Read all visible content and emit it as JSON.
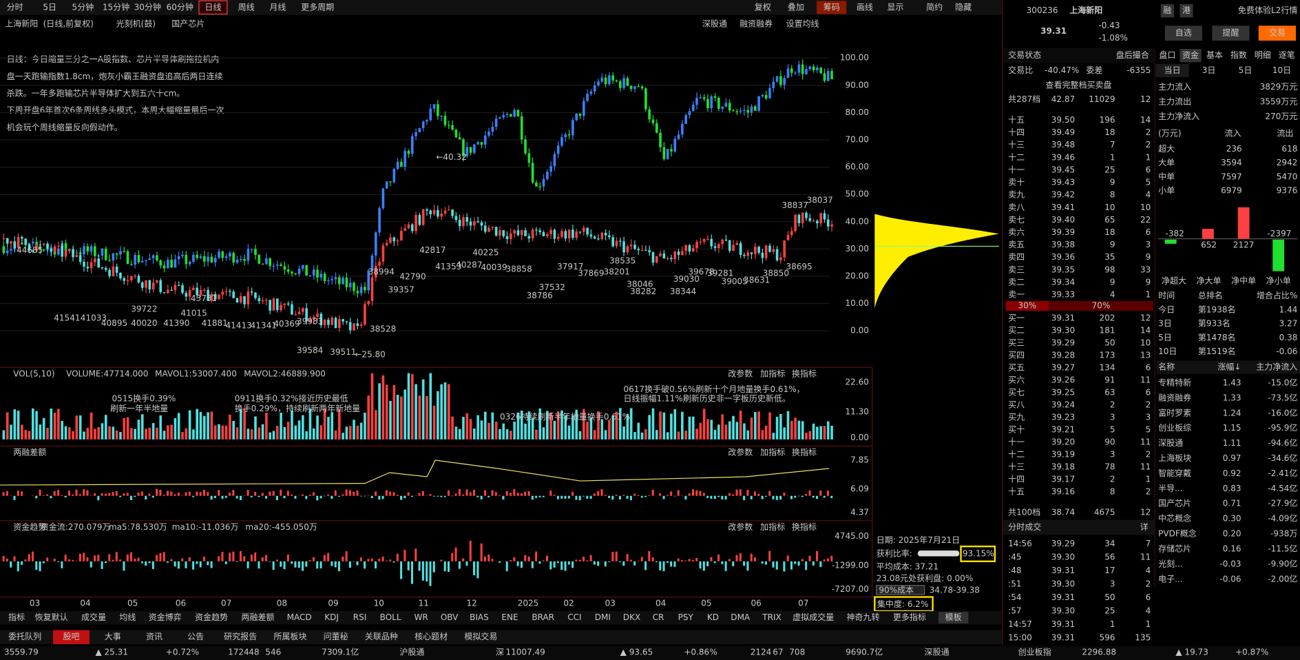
{
  "toolbar": {
    "periods": [
      "分时",
      "5日",
      "5分钟",
      "15分钟",
      "30分钟",
      "60分钟",
      "日线",
      "周线",
      "月线",
      "更多周期"
    ],
    "tools": [
      "复权",
      "叠加",
      "筹码",
      "画线",
      "显示",
      "简约",
      "隐藏"
    ]
  },
  "header": {
    "name": "上海新阳",
    "mode": "(日线,前复权)",
    "tag1": "光刻机(鼓)",
    "tag2": "国产芯片",
    "links": [
      "深股通",
      "融资融券",
      "设置均线"
    ]
  },
  "note": [
    "日线：今日缩量三分之一A股指数、芯片半导体刷拖拉机内",
    "盘一天跑输指数1.8cm，炮灰小霸王融资盘追高后两日连续",
    "杀跌。一年多跑输芯片半导体扩大到五六十cm。",
    "下周开盘6年首次6条周线多头模式，本周大幅缩量最后一次",
    "机会玩个周线缩量反向假动作。"
  ],
  "price_axis": [
    "100.00",
    "90.00",
    "80.00",
    "70.00",
    "60.00",
    "50.00",
    "40.00",
    "30.00",
    "20.00",
    "10.00",
    "0.00"
  ],
  "chart_labels": [
    "44685",
    "41541",
    "41033",
    "40895",
    "40020",
    "39722",
    "41390",
    "41015",
    "43731",
    "41881",
    "41413",
    "41341",
    "40369",
    "39983",
    "39584",
    "39511",
    "38528",
    "←25.80",
    "38994",
    "39357",
    "42790",
    "42817",
    "←40.32",
    "41353",
    "40287",
    "40039",
    "40225",
    "38858",
    "38786",
    "37532",
    "37917",
    "37869",
    "38201",
    "38535",
    "38046",
    "38282",
    "38344",
    "39030",
    "39678",
    "39281",
    "39005",
    "38631",
    "38850",
    "38695",
    "38837",
    "38037"
  ],
  "vol_panel": {
    "title": "VOL(5,10)",
    "volume": "VOLUME:47714.000",
    "mavol1": "MAVOL1:53007.400",
    "mavol2": "MAVOL2:46889.900",
    "buttons": [
      "改参数",
      "加指标",
      "换指标"
    ],
    "axis": [
      "22.60",
      "11.30",
      "0.00"
    ],
    "notes": [
      "0515换手0.39%",
      "刷新一年半地量",
      "0911换手0.32%接近历史最低",
      "换手0.29%，持续刷新两年新地量",
      "0326持续刷新半年地量换手0.61%",
      "0617换手破0.56%刷新十个月地量换手0.61%，",
      "日线振幅1.11%刷新历史非一字板历史新低。"
    ]
  },
  "margin_panel": {
    "title": "两融差额",
    "buttons": [
      "改参数",
      "加指标",
      "换指标"
    ],
    "axis": [
      "7.85",
      "6.09",
      "4.37"
    ]
  },
  "fund_panel": {
    "title": "资金趋势",
    "flow": "资金流:270.079万",
    "ma5": "ma5:78.530万",
    "ma10": "ma10:-11.036万",
    "ma20": "ma20:-455.050万",
    "buttons": [
      "改参数",
      "加指标",
      "换指标"
    ],
    "axis": [
      "4745.00",
      "-1299.00",
      "-7207.00"
    ]
  },
  "x_axis": [
    "03",
    "04",
    "05",
    "06",
    "07",
    "08",
    "09",
    "10",
    "11",
    "12",
    "2025",
    "02",
    "03",
    "04",
    "05",
    "06",
    "07"
  ],
  "cost_info": {
    "date": "日期: 2025年7月21日",
    "profit_label": "获利比率:",
    "profit": "93.15%",
    "avg": "平均成本: 37.21",
    "profit_at": "23.08元处获利盘: 0.00%",
    "cost_label": "90%成本",
    "cost_range": "34.78-39.38",
    "concentration": "集中度: 6.2%"
  },
  "indicator_tabs": [
    "指标",
    "恢复默认",
    "成交量",
    "均线",
    "资金博弈",
    "资金趋势",
    "两融差额",
    "MACD",
    "KDJ",
    "RSI",
    "BOLL",
    "WR",
    "OBV",
    "BIAS",
    "ENE",
    "BRAR",
    "CCI",
    "DMI",
    "DKX",
    "CR",
    "PSY",
    "KD",
    "DMA",
    "TRIX",
    "虚拟成交量",
    "神奇九转",
    "更多指标",
    "模板"
  ],
  "info_tabs": [
    "委托队列",
    "股吧",
    "大事",
    "资讯",
    "公告",
    "研究报告",
    "所属板块",
    "问董秘",
    "关联品种",
    "核心题材",
    "模拟交易"
  ],
  "status_bar": [
    "3559.79",
    "▲ 25.31",
    "+0.72%",
    "1724",
    "48",
    "546",
    "7309.1亿",
    "沪股通",
    "深",
    "11007.49",
    "▲ 93.65",
    "+0.86%",
    "2124",
    "67",
    "708",
    "9690.7亿",
    "深股通",
    "创业板指",
    "2296.88",
    "▲ 19.73",
    "+0.87%"
  ],
  "quote": {
    "code": "300236",
    "name": "上海新阳",
    "tags": [
      "融",
      "港"
    ],
    "l2": "免费体验L2行情",
    "price": "39.31",
    "change": "-0.43",
    "pct": "-1.08%",
    "buttons": [
      "自选",
      "提醒",
      "交易"
    ]
  },
  "order_book": {
    "status_label": "交易状态",
    "status": "盘后撮合",
    "ratio_label": "交易比",
    "ratio": "-40.47%",
    "diff_label": "委差",
    "diff": "-6355",
    "full": "查看完整档买卖盘",
    "sell_total": [
      "共287档",
      "42.87",
      "11029",
      "12"
    ],
    "sell": [
      [
        "十五",
        "39.50",
        "196",
        "14"
      ],
      [
        "十四",
        "39.49",
        "18",
        "2"
      ],
      [
        "十三",
        "39.48",
        "7",
        "2"
      ],
      [
        "十二",
        "39.46",
        "1",
        "1"
      ],
      [
        "十一",
        "39.45",
        "25",
        "6"
      ],
      [
        "卖十",
        "39.43",
        "9",
        "5"
      ],
      [
        "卖九",
        "39.42",
        "8",
        "4"
      ],
      [
        "卖八",
        "39.41",
        "10",
        "10"
      ],
      [
        "卖七",
        "39.40",
        "65",
        "22"
      ],
      [
        "卖六",
        "39.39",
        "18",
        "6"
      ],
      [
        "卖五",
        "39.38",
        "9",
        "3"
      ],
      [
        "卖四",
        "39.36",
        "35",
        "9"
      ],
      [
        "卖三",
        "39.35",
        "98",
        "33"
      ],
      [
        "卖二",
        "39.34",
        "9",
        "9"
      ],
      [
        "卖一",
        "39.33",
        "4",
        "1"
      ]
    ],
    "split": [
      "30%",
      "70%"
    ],
    "buy": [
      [
        "买一",
        "39.31",
        "202",
        "12"
      ],
      [
        "买二",
        "39.30",
        "181",
        "14"
      ],
      [
        "买三",
        "39.29",
        "50",
        "10"
      ],
      [
        "买四",
        "39.28",
        "173",
        "13"
      ],
      [
        "买五",
        "39.27",
        "134",
        "6"
      ],
      [
        "买六",
        "39.26",
        "91",
        "11"
      ],
      [
        "买七",
        "39.25",
        "63",
        "6"
      ],
      [
        "买八",
        "39.24",
        "2",
        "2"
      ],
      [
        "买九",
        "39.23",
        "3",
        "3"
      ],
      [
        "买十",
        "39.21",
        "5",
        "5"
      ],
      [
        "十一",
        "39.20",
        "90",
        "11"
      ],
      [
        "十二",
        "39.19",
        "3",
        "2"
      ],
      [
        "十三",
        "39.18",
        "78",
        "11"
      ],
      [
        "十四",
        "39.17",
        "2",
        "1"
      ],
      [
        "十五",
        "39.16",
        "8",
        "2"
      ]
    ],
    "buy_total": [
      "共100档",
      "38.74",
      "4675",
      "12"
    ]
  },
  "ticks": {
    "title": "分时成交",
    "more": "详",
    "rows": [
      [
        "14:56",
        "39.29",
        "34",
        "7"
      ],
      [
        ":45",
        "39.30",
        "56",
        "11"
      ],
      [
        ":48",
        "39.31",
        "17",
        "4"
      ],
      [
        ":51",
        "39.30",
        "3",
        "2"
      ],
      [
        ":54",
        "39.31",
        "50",
        "6"
      ],
      [
        ":57",
        "39.30",
        "25",
        "4"
      ],
      [
        "14:57",
        "39.31",
        "1",
        "1"
      ],
      [
        "15:00",
        "39.31",
        "596",
        "135"
      ]
    ]
  },
  "funds": {
    "tabs": [
      "盘口",
      "资金",
      "基本",
      "指数",
      "明细",
      "逐笔"
    ],
    "periods": [
      "当日",
      "3日",
      "5日",
      "10日"
    ],
    "main": [
      [
        "主力流入",
        "3829万元"
      ],
      [
        "主力流出",
        "3559万元"
      ],
      [
        "主力净流入",
        "270万元"
      ]
    ],
    "head": [
      "(万元)",
      "流入",
      "流出"
    ],
    "rows": [
      [
        "超大",
        "236",
        "618"
      ],
      [
        "大单",
        "3594",
        "2942"
      ],
      [
        "中单",
        "7597",
        "5470"
      ],
      [
        "小单",
        "6979",
        "9376"
      ]
    ],
    "net": [
      "-382",
      "652",
      "2127",
      "-2397"
    ],
    "net_names": [
      "净超大",
      "净大单",
      "净中单",
      "净小单"
    ],
    "rank_head": [
      "时间",
      "总排名",
      "增合占比%"
    ],
    "ranks": [
      [
        "今日",
        "第1938名",
        "1.44"
      ],
      [
        "3日",
        "第933名",
        "3.27"
      ],
      [
        "5日",
        "第1478名",
        "0.38"
      ],
      [
        "10日",
        "第1519名",
        "-0.06"
      ]
    ],
    "board_head": [
      "名称",
      "涨幅↓",
      "主力净流入"
    ],
    "boards": [
      [
        "专精特新",
        "1.43",
        "-15.0亿"
      ],
      [
        "融资融券",
        "1.33",
        "-73.5亿"
      ],
      [
        "富时罗素",
        "1.24",
        "-16.0亿"
      ],
      [
        "创业板综",
        "1.15",
        "-95.9亿"
      ],
      [
        "深股通",
        "1.11",
        "-94.6亿"
      ],
      [
        "上海板块",
        "0.97",
        "-34.6亿"
      ],
      [
        "智能穿戴",
        "0.92",
        "-2.41亿"
      ],
      [
        "半导...",
        "0.83",
        "-4.54亿"
      ],
      [
        "国产芯片",
        "0.71",
        "-27.9亿"
      ],
      [
        "中芯概念",
        "0.30",
        "-4.09亿"
      ],
      [
        "PVDF概念",
        "0.20",
        "-938万"
      ],
      [
        "存储芯片",
        "0.16",
        "-11.5亿"
      ],
      [
        "光刻...",
        "-0.03",
        "-9.90亿"
      ],
      [
        "电子...",
        "-0.06",
        "-2.00亿"
      ]
    ]
  }
}
